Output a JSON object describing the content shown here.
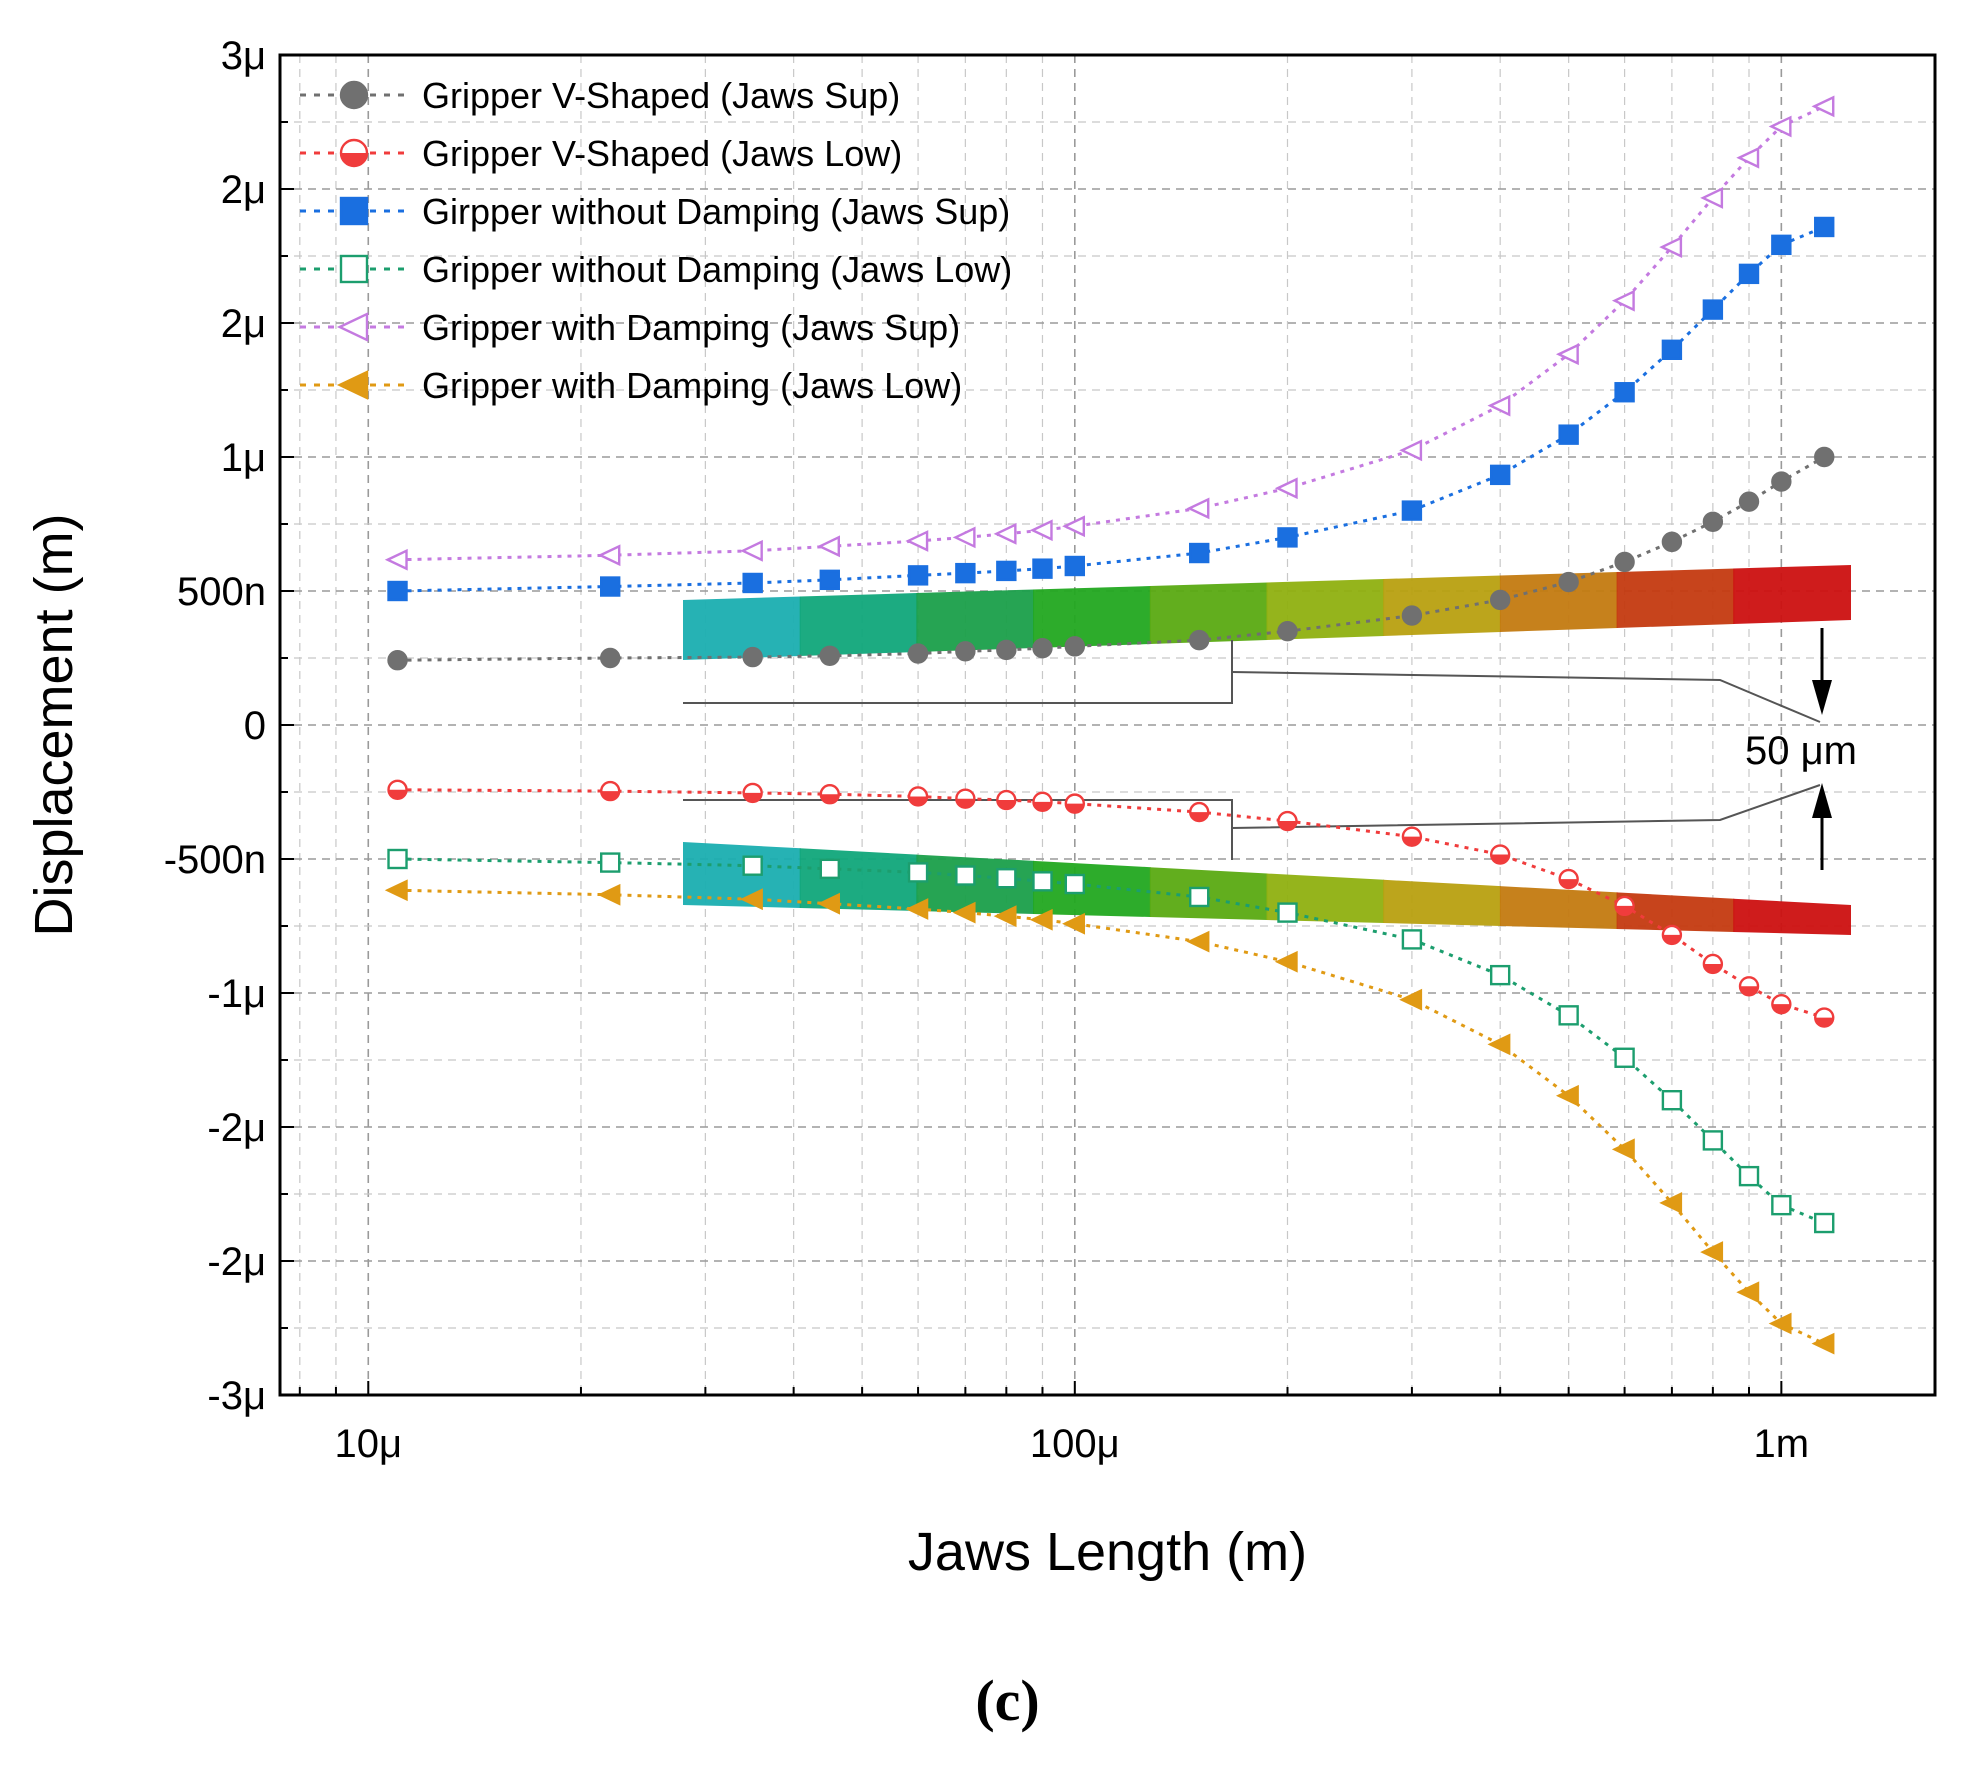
{
  "chart_data": {
    "type": "line",
    "title": "",
    "xlabel": "Jaws Length (m)",
    "ylabel": "Displacement (m)",
    "xscale": "log",
    "xlim": [
      7.5e-06,
      0.00165
    ],
    "ylim": [
      -1500,
      1500
    ],
    "xticks": [
      {
        "value": 1e-05,
        "label": "10μ"
      },
      {
        "value": 0.0001,
        "label": "100μ"
      },
      {
        "value": 0.001,
        "label": "1m"
      }
    ],
    "yticks": [
      {
        "value": 1500,
        "label": "3μ"
      },
      {
        "value": 1200,
        "label": "2μ"
      },
      {
        "value": 900,
        "label": "2μ"
      },
      {
        "value": 600,
        "label": "1μ"
      },
      {
        "value": 300,
        "label": "500n"
      },
      {
        "value": 0,
        "label": "0"
      },
      {
        "value": -300,
        "label": "-500n"
      },
      {
        "value": -600,
        "label": "-1μ"
      },
      {
        "value": -900,
        "label": "-2μ"
      },
      {
        "value": -1200,
        "label": "-2μ"
      },
      {
        "value": -1500,
        "label": "-3μ"
      }
    ],
    "grid": true,
    "legend_position": "top-left",
    "caption": "(c)",
    "annotation": {
      "text": "50 μm"
    },
    "x": [
      1.1e-05,
      2.2e-05,
      3.5e-05,
      4.5e-05,
      6e-05,
      7e-05,
      8e-05,
      9e-05,
      0.0001,
      0.00015,
      0.0002,
      0.0003,
      0.0004,
      0.0005,
      0.0006,
      0.0007,
      0.0008,
      0.0009,
      0.001,
      0.00115
    ],
    "series": [
      {
        "name": "Gripper V-Shaped (Jaws Sup)",
        "color": "#707070",
        "marker": "circle",
        "filled": true,
        "values": [
          145,
          150,
          152,
          155,
          160,
          165,
          168,
          172,
          176,
          190,
          210,
          245,
          280,
          320,
          365,
          410,
          455,
          500,
          545,
          600
        ]
      },
      {
        "name": "Gripper V-Shaped (Jaws Low)",
        "color": "#f03c3c",
        "marker": "circle",
        "filled": "half",
        "values": [
          -145,
          -148,
          -152,
          -155,
          -160,
          -165,
          -168,
          -172,
          -176,
          -195,
          -215,
          -250,
          -290,
          -345,
          -405,
          -470,
          -535,
          -585,
          -625,
          -655
        ]
      },
      {
        "name": "Girpper without Damping (Jaws Sup)",
        "color": "#1a6fe0",
        "marker": "square",
        "filled": true,
        "values": [
          300,
          310,
          318,
          325,
          335,
          340,
          345,
          350,
          356,
          385,
          420,
          480,
          560,
          650,
          745,
          840,
          930,
          1010,
          1075,
          1115
        ]
      },
      {
        "name": "Gripper without Damping (Jaws Low)",
        "color": "#1c9e6e",
        "marker": "square",
        "filled": false,
        "values": [
          -300,
          -308,
          -315,
          -322,
          -330,
          -337,
          -343,
          -350,
          -356,
          -385,
          -420,
          -480,
          -560,
          -650,
          -745,
          -840,
          -930,
          -1010,
          -1075,
          -1115
        ]
      },
      {
        "name": "Gripper with Damping (Jaws Sup)",
        "color": "#c47ae0",
        "marker": "triangle-left",
        "filled": false,
        "values": [
          370,
          380,
          390,
          400,
          412,
          420,
          428,
          436,
          445,
          485,
          530,
          615,
          715,
          830,
          950,
          1070,
          1180,
          1270,
          1340,
          1385
        ]
      },
      {
        "name": "Gripper with Damping (Jaws Low)",
        "color": "#e09a14",
        "marker": "triangle-left",
        "filled": true,
        "values": [
          -370,
          -380,
          -390,
          -400,
          -412,
          -420,
          -428,
          -436,
          -445,
          -485,
          -530,
          -615,
          -715,
          -830,
          -950,
          -1070,
          -1180,
          -1270,
          -1340,
          -1385
        ]
      }
    ]
  }
}
